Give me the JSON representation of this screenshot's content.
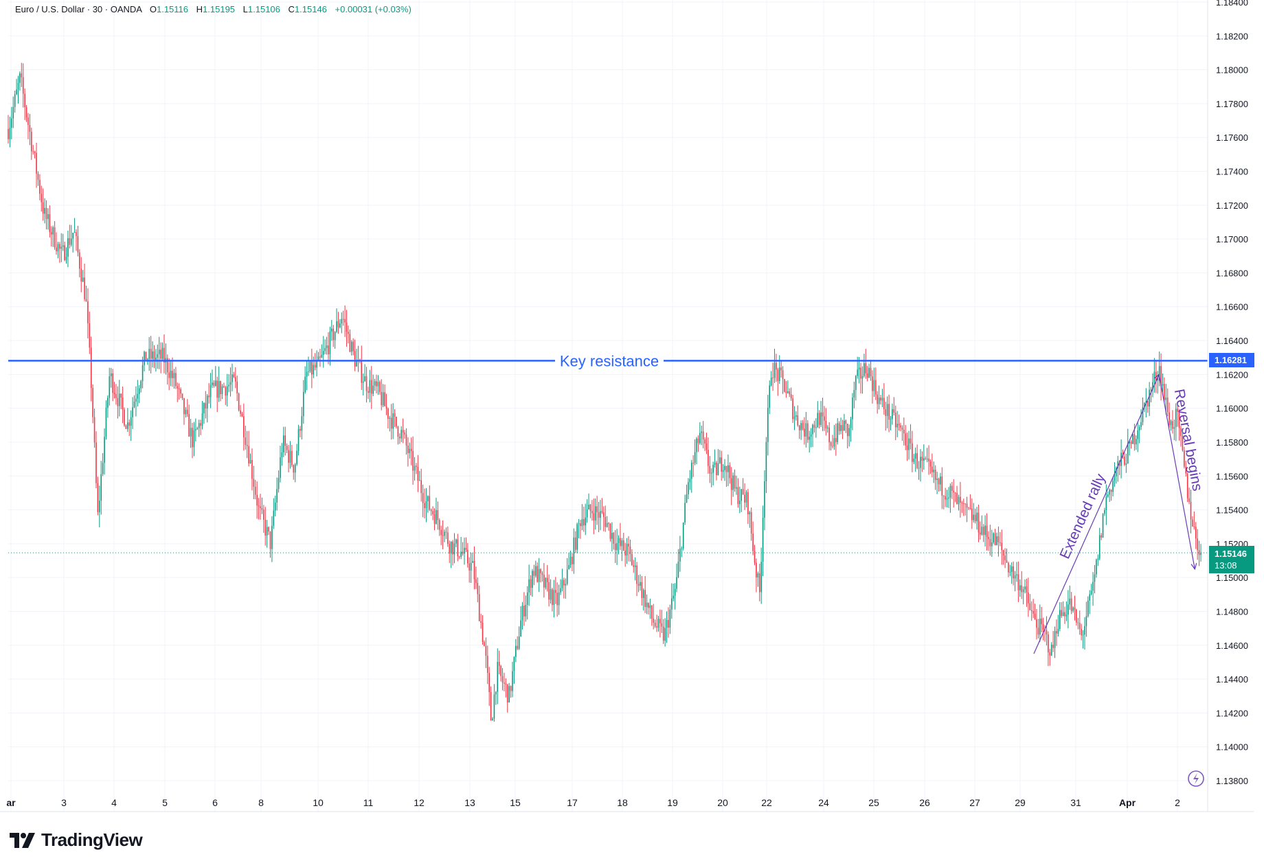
{
  "header": {
    "symbol": "Euro / U.S. Dollar · 30 · OANDA",
    "o_label": "O",
    "o_value": "1.15116",
    "h_label": "H",
    "h_value": "1.15195",
    "l_label": "L",
    "l_value": "1.15106",
    "c_label": "C",
    "c_value": "1.15146",
    "change": "+0.00031 (+0.03%)"
  },
  "chart_data": {
    "type": "candlestick",
    "ylim": [
      1.137,
      1.185
    ],
    "y_ticks": [
      "1.18400",
      "1.18200",
      "1.18000",
      "1.17800",
      "1.17600",
      "1.17400",
      "1.17200",
      "1.17000",
      "1.16800",
      "1.16600",
      "1.16400",
      "1.16200",
      "1.16000",
      "1.15800",
      "1.15600",
      "1.15400",
      "1.15200",
      "1.15000",
      "1.14800",
      "1.14600",
      "1.14400",
      "1.14200",
      "1.14000",
      "1.13800"
    ],
    "x_ticks": [
      "ar",
      "3",
      "4",
      "5",
      "6",
      "8",
      "10",
      "11",
      "12",
      "13",
      "15",
      "17",
      "18",
      "19",
      "20",
      "22",
      "24",
      "25",
      "26",
      "27",
      "29",
      "31",
      "Apr",
      "2"
    ],
    "grid": true,
    "price_path": [
      [
        0,
        1.1765
      ],
      [
        0.01,
        1.1795
      ],
      [
        0.02,
        1.1755
      ],
      [
        0.03,
        1.1715
      ],
      [
        0.045,
        1.169
      ],
      [
        0.055,
        1.1705
      ],
      [
        0.065,
        1.1665
      ],
      [
        0.07,
        1.161
      ],
      [
        0.075,
        1.1535
      ],
      [
        0.085,
        1.162
      ],
      [
        0.1,
        1.159
      ],
      [
        0.115,
        1.163
      ],
      [
        0.13,
        1.163
      ],
      [
        0.14,
        1.1615
      ],
      [
        0.155,
        1.158
      ],
      [
        0.17,
        1.161
      ],
      [
        0.19,
        1.1615
      ],
      [
        0.2,
        1.158
      ],
      [
        0.21,
        1.154
      ],
      [
        0.22,
        1.152
      ],
      [
        0.23,
        1.158
      ],
      [
        0.24,
        1.1565
      ],
      [
        0.25,
        1.162
      ],
      [
        0.26,
        1.1625
      ],
      [
        0.27,
        1.164
      ],
      [
        0.28,
        1.1655
      ],
      [
        0.29,
        1.163
      ],
      [
        0.3,
        1.1615
      ],
      [
        0.31,
        1.161
      ],
      [
        0.32,
        1.1595
      ],
      [
        0.33,
        1.1585
      ],
      [
        0.34,
        1.1565
      ],
      [
        0.35,
        1.1545
      ],
      [
        0.36,
        1.1535
      ],
      [
        0.37,
        1.152
      ],
      [
        0.38,
        1.1515
      ],
      [
        0.39,
        1.1505
      ],
      [
        0.4,
        1.1455
      ],
      [
        0.405,
        1.1415
      ],
      [
        0.41,
        1.1445
      ],
      [
        0.42,
        1.143
      ],
      [
        0.43,
        1.1475
      ],
      [
        0.44,
        1.1505
      ],
      [
        0.45,
        1.1495
      ],
      [
        0.46,
        1.1485
      ],
      [
        0.47,
        1.1505
      ],
      [
        0.48,
        1.1535
      ],
      [
        0.49,
        1.154
      ],
      [
        0.5,
        1.1535
      ],
      [
        0.51,
        1.152
      ],
      [
        0.52,
        1.1515
      ],
      [
        0.53,
        1.1495
      ],
      [
        0.54,
        1.1475
      ],
      [
        0.55,
        1.1465
      ],
      [
        0.56,
        1.1495
      ],
      [
        0.57,
        1.1555
      ],
      [
        0.58,
        1.1585
      ],
      [
        0.59,
        1.156
      ],
      [
        0.6,
        1.157
      ],
      [
        0.61,
        1.155
      ],
      [
        0.62,
        1.1545
      ],
      [
        0.625,
        1.1515
      ],
      [
        0.63,
        1.149
      ],
      [
        0.635,
        1.1575
      ],
      [
        0.64,
        1.1625
      ],
      [
        0.65,
        1.1615
      ],
      [
        0.66,
        1.1595
      ],
      [
        0.67,
        1.1585
      ],
      [
        0.68,
        1.1595
      ],
      [
        0.69,
        1.158
      ],
      [
        0.7,
        1.159
      ],
      [
        0.705,
        1.1585
      ],
      [
        0.71,
        1.1615
      ],
      [
        0.72,
        1.1625
      ],
      [
        0.73,
        1.1605
      ],
      [
        0.74,
        1.1595
      ],
      [
        0.75,
        1.1585
      ],
      [
        0.76,
        1.157
      ],
      [
        0.77,
        1.1565
      ],
      [
        0.78,
        1.1555
      ],
      [
        0.79,
        1.155
      ],
      [
        0.8,
        1.154
      ],
      [
        0.81,
        1.1535
      ],
      [
        0.82,
        1.1525
      ],
      [
        0.83,
        1.152
      ],
      [
        0.84,
        1.1505
      ],
      [
        0.85,
        1.1495
      ],
      [
        0.86,
        1.1475
      ],
      [
        0.87,
        1.1465
      ],
      [
        0.875,
        1.1455
      ],
      [
        0.88,
        1.1475
      ],
      [
        0.89,
        1.1485
      ],
      [
        0.9,
        1.1465
      ],
      [
        0.91,
        1.1495
      ],
      [
        0.92,
        1.1545
      ],
      [
        0.93,
        1.1565
      ],
      [
        0.94,
        1.1575
      ],
      [
        0.95,
        1.1595
      ],
      [
        0.96,
        1.1615
      ],
      [
        0.965,
        1.1625
      ],
      [
        0.97,
        1.1605
      ],
      [
        0.975,
        1.159
      ],
      [
        0.98,
        1.1595
      ],
      [
        0.99,
        1.1545
      ],
      [
        0.995,
        1.1525
      ],
      [
        1,
        1.15146
      ]
    ],
    "annotations": {
      "key_resistance": {
        "label": "Key resistance",
        "price": 1.16281,
        "price_label": "1.16281",
        "color": "#2962ff"
      },
      "current_price": {
        "price": 1.15146,
        "price_label": "1.15146",
        "countdown": "13:08",
        "color": "#089981"
      },
      "extended_rally": {
        "label": "Extended rally",
        "from": [
          0.86,
          1.1455
        ],
        "to": [
          0.965,
          1.162
        ],
        "color": "#673ab7"
      },
      "reversal_begins": {
        "label": "Reversal begins",
        "from": [
          0.965,
          1.162
        ],
        "to": [
          0.995,
          1.1505
        ],
        "color": "#673ab7"
      }
    },
    "colors": {
      "up": "#089981",
      "down": "#f23645",
      "grid": "#f0f3fa"
    }
  },
  "branding": {
    "logo_text": "TradingView"
  }
}
